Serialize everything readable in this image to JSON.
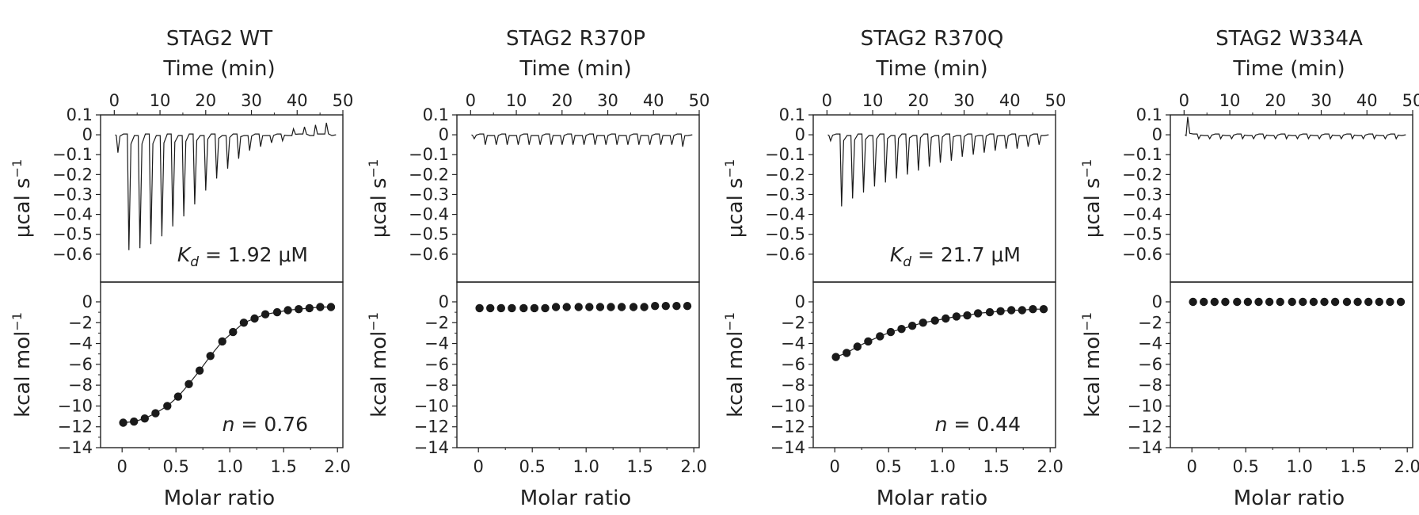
{
  "figure": {
    "x_label_top": "Time (min)",
    "x_label_bottom": "Molar ratio",
    "y_label_top_base": "μcal s",
    "y_label_top_sup": "−1",
    "y_label_bottom_base": "kcal mol",
    "y_label_bottom_sup": "−1",
    "time_ticks": [
      "0",
      "10",
      "20",
      "30",
      "40",
      "50"
    ],
    "molar_ticks": [
      "0",
      "0.5",
      "1.0",
      "1.5",
      "2.0"
    ],
    "raw_ticks": [
      "0.1",
      "0",
      "−0.1",
      "−0.2",
      "−0.3",
      "−0.4",
      "−0.5",
      "−0.6"
    ],
    "integrated_ticks": [
      "0",
      "−2",
      "−4",
      "−6",
      "−8",
      "−10",
      "−12",
      "−14"
    ]
  },
  "chart_data": [
    {
      "type": "line",
      "title": "STAG2 WT",
      "raw": {
        "xlabel": "Time (min)",
        "ylabel": "μcal s−1",
        "xlim": [
          -3,
          50
        ],
        "ylim": [
          -0.74,
          0.1
        ],
        "injection_times": [
          0.8,
          3.2,
          5.6,
          8.0,
          10.4,
          12.8,
          15.2,
          17.6,
          20.0,
          22.4,
          24.8,
          27.2,
          29.6,
          32.0,
          34.4,
          36.8,
          39.2,
          41.6,
          44.0,
          46.4
        ],
        "peak_heights": [
          -0.09,
          -0.58,
          -0.57,
          -0.55,
          -0.51,
          -0.46,
          -0.41,
          -0.35,
          -0.28,
          -0.22,
          -0.17,
          -0.12,
          -0.08,
          -0.06,
          -0.04,
          -0.03,
          0.03,
          0.04,
          0.05,
          0.06
        ]
      },
      "integrated": {
        "xlabel": "Molar ratio",
        "ylabel": "kcal mol−1",
        "xlim": [
          -0.2,
          2.05
        ],
        "ylim": [
          -14,
          1.9
        ],
        "x": [
          0.01,
          0.11,
          0.21,
          0.31,
          0.42,
          0.52,
          0.62,
          0.72,
          0.82,
          0.93,
          1.03,
          1.13,
          1.23,
          1.33,
          1.44,
          1.54,
          1.64,
          1.74,
          1.84,
          1.94
        ],
        "y": [
          -11.6,
          -11.5,
          -11.2,
          -10.7,
          -10.0,
          -9.1,
          -7.9,
          -6.6,
          -5.2,
          -3.8,
          -2.9,
          -2.0,
          -1.6,
          -1.2,
          -1.0,
          -0.8,
          -0.7,
          -0.6,
          -0.5,
          -0.5
        ],
        "fit": true
      },
      "annotations": {
        "kd_symbol": "K",
        "kd_sub": "d",
        "kd_value": " = 1.92 μM",
        "n_symbol": "n",
        "n_value": " = 0.76"
      }
    },
    {
      "type": "line",
      "title": "STAG2 R370P",
      "raw": {
        "xlabel": "Time (min)",
        "ylabel": "μcal s−1",
        "xlim": [
          -3,
          50
        ],
        "ylim": [
          -0.74,
          0.1
        ],
        "injection_times": [
          0.8,
          3.2,
          5.6,
          8.0,
          10.4,
          12.8,
          15.2,
          17.6,
          20.0,
          22.4,
          24.8,
          27.2,
          29.6,
          32.0,
          34.4,
          36.8,
          39.2,
          41.6,
          44.0,
          46.4
        ],
        "peak_heights": [
          -0.02,
          -0.05,
          -0.05,
          -0.05,
          -0.05,
          -0.05,
          -0.05,
          -0.05,
          -0.05,
          -0.05,
          -0.05,
          -0.05,
          -0.05,
          -0.05,
          -0.05,
          -0.05,
          -0.05,
          -0.05,
          -0.05,
          -0.06
        ]
      },
      "integrated": {
        "xlabel": "Molar ratio",
        "ylabel": "kcal mol−1",
        "xlim": [
          -0.2,
          2.05
        ],
        "ylim": [
          -14,
          1.9
        ],
        "x": [
          0.01,
          0.11,
          0.21,
          0.31,
          0.42,
          0.52,
          0.62,
          0.72,
          0.82,
          0.93,
          1.03,
          1.13,
          1.23,
          1.33,
          1.44,
          1.54,
          1.64,
          1.74,
          1.84,
          1.94
        ],
        "y": [
          -0.6,
          -0.6,
          -0.6,
          -0.6,
          -0.6,
          -0.6,
          -0.6,
          -0.5,
          -0.5,
          -0.5,
          -0.5,
          -0.5,
          -0.5,
          -0.5,
          -0.5,
          -0.5,
          -0.4,
          -0.4,
          -0.4,
          -0.4
        ],
        "fit": false
      },
      "annotations": null
    },
    {
      "type": "line",
      "title": "STAG2 R370Q",
      "raw": {
        "xlabel": "Time (min)",
        "ylabel": "μcal s−1",
        "xlim": [
          -3,
          50
        ],
        "ylim": [
          -0.74,
          0.1
        ],
        "injection_times": [
          0.8,
          3.2,
          5.6,
          8.0,
          10.4,
          12.8,
          15.2,
          17.6,
          20.0,
          22.4,
          24.8,
          27.2,
          29.6,
          32.0,
          34.4,
          36.8,
          39.2,
          41.6,
          44.0,
          46.4
        ],
        "peak_heights": [
          -0.03,
          -0.36,
          -0.32,
          -0.29,
          -0.26,
          -0.24,
          -0.22,
          -0.2,
          -0.18,
          -0.16,
          -0.14,
          -0.13,
          -0.11,
          -0.1,
          -0.09,
          -0.08,
          -0.07,
          -0.07,
          -0.06,
          -0.05
        ]
      },
      "integrated": {
        "xlabel": "Molar ratio",
        "ylabel": "kcal mol−1",
        "xlim": [
          -0.2,
          2.05
        ],
        "ylim": [
          -14,
          1.9
        ],
        "x": [
          0.01,
          0.11,
          0.21,
          0.31,
          0.42,
          0.52,
          0.62,
          0.72,
          0.82,
          0.93,
          1.03,
          1.13,
          1.23,
          1.33,
          1.44,
          1.54,
          1.64,
          1.74,
          1.84,
          1.94
        ],
        "y": [
          -5.3,
          -4.9,
          -4.3,
          -3.8,
          -3.3,
          -2.9,
          -2.6,
          -2.3,
          -2.0,
          -1.8,
          -1.6,
          -1.4,
          -1.3,
          -1.1,
          -1.0,
          -0.9,
          -0.8,
          -0.8,
          -0.7,
          -0.7
        ],
        "fit": true
      },
      "annotations": {
        "kd_symbol": "K",
        "kd_sub": "d",
        "kd_value": " = 21.7 μM",
        "n_symbol": "n",
        "n_value": " = 0.44"
      }
    },
    {
      "type": "line",
      "title": "STAG2 W334A",
      "raw": {
        "xlabel": "Time (min)",
        "ylabel": "μcal s−1",
        "xlim": [
          -3,
          50
        ],
        "ylim": [
          -0.74,
          0.1
        ],
        "injection_times": [
          0.8,
          3.2,
          5.6,
          8.0,
          10.4,
          12.8,
          15.2,
          17.6,
          20.0,
          22.4,
          24.8,
          27.2,
          29.6,
          32.0,
          34.4,
          36.8,
          39.2,
          41.6,
          44.0,
          46.4
        ],
        "peak_heights": [
          0.09,
          -0.02,
          -0.02,
          -0.02,
          -0.02,
          -0.02,
          -0.02,
          -0.02,
          -0.02,
          -0.02,
          -0.02,
          -0.02,
          -0.02,
          -0.02,
          -0.02,
          -0.02,
          -0.02,
          -0.02,
          -0.02,
          -0.02
        ]
      },
      "integrated": {
        "xlabel": "Molar ratio",
        "ylabel": "kcal mol−1",
        "xlim": [
          -0.2,
          2.05
        ],
        "ylim": [
          -14,
          1.9
        ],
        "x": [
          0.01,
          0.11,
          0.21,
          0.31,
          0.42,
          0.52,
          0.62,
          0.72,
          0.82,
          0.93,
          1.03,
          1.13,
          1.23,
          1.33,
          1.44,
          1.54,
          1.64,
          1.74,
          1.84,
          1.94
        ],
        "y": [
          0.0,
          0.0,
          0.0,
          0.0,
          0.0,
          0.0,
          0.0,
          0.0,
          0.0,
          0.0,
          0.0,
          0.0,
          0.0,
          0.0,
          0.0,
          0.0,
          0.0,
          0.0,
          0.0,
          0.0
        ],
        "fit": false
      },
      "annotations": null
    }
  ]
}
